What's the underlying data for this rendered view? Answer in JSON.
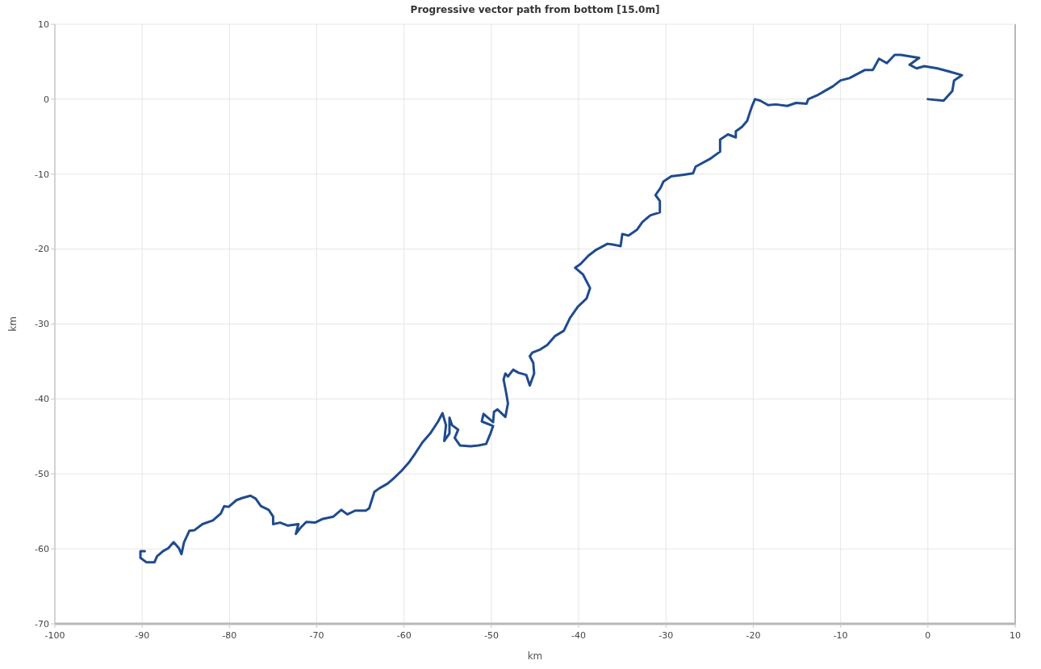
{
  "chart_data": {
    "type": "line",
    "title": "Progressive vector path from bottom [15.0m]",
    "xlabel": "km",
    "ylabel": "km",
    "xlim": [
      -100,
      10
    ],
    "ylim": [
      -70,
      10
    ],
    "xticks": [
      -100,
      -90,
      -80,
      -70,
      -60,
      -50,
      -40,
      -30,
      -20,
      -10,
      0,
      10
    ],
    "yticks": [
      -70,
      -60,
      -50,
      -40,
      -30,
      -20,
      -10,
      0,
      10
    ],
    "grid": true,
    "series": [
      {
        "color": "#1f4b8e",
        "x": [
          0,
          1.8,
          2.8,
          3.0,
          3.9,
          2.4,
          1.1,
          -0.4,
          -1.3,
          -2.1,
          -1.0,
          -3.1,
          -3.8,
          -4.7,
          -5.6,
          -6.3,
          -7.2,
          -9.0,
          -10.0,
          -10.9,
          -11.8,
          -12.7,
          -13.7,
          -13.9,
          -15.1,
          -16.1,
          -17.4,
          -18.3,
          -19.2,
          -19.8,
          -20.1,
          -20.4,
          -20.7,
          -21.3,
          -22.0,
          -22.0,
          -22.9,
          -23.8,
          -23.8,
          -25.0,
          -26.6,
          -26.9,
          -28.1,
          -29.4,
          -30.3,
          -30.6,
          -31.2,
          -30.7,
          -30.7,
          -31.8,
          -32.7,
          -33.3,
          -34.3,
          -35.0,
          -35.2,
          -36.1,
          -36.7,
          -38.0,
          -38.9,
          -39.8,
          -40.4,
          -39.5,
          -38.7,
          -39.1,
          -40.1,
          -41.0,
          -41.7,
          -42.7,
          -43.6,
          -44.4,
          -45.3,
          -45.6,
          -45.2,
          -45.1,
          -45.6,
          -46.0,
          -46.9,
          -47.5,
          -48.1,
          -48.4,
          -48.6,
          -48.3,
          -48.1,
          -48.4,
          -49.3,
          -49.7,
          -49.8,
          -50.9,
          -51.1,
          -49.8,
          -50.1,
          -50.6,
          -51.5,
          -52.4,
          -53.6,
          -54.2,
          -53.8,
          -54.5,
          -54.8,
          -54.8,
          -55.4,
          -55.2,
          -55.6,
          -56.1,
          -57.0,
          -57.9,
          -58.8,
          -59.4,
          -60.3,
          -61.2,
          -61.9,
          -62.8,
          -63.4,
          -63.7,
          -64.0,
          -64.4,
          -65.6,
          -66.5,
          -67.2,
          -68.1,
          -69.3,
          -70.2,
          -71.2,
          -71.8,
          -72.4,
          -72.1,
          -73.3,
          -74.2,
          -75.0,
          -75.0,
          -75.5,
          -76.4,
          -77.0,
          -77.6,
          -78.5,
          -79.2,
          -80.1,
          -80.6,
          -81.0,
          -81.9,
          -83.1,
          -84.0,
          -84.6,
          -85.2,
          -85.5,
          -85.8,
          -86.4,
          -87.0,
          -87.6,
          -88.3,
          -88.6,
          -89.5,
          -90.2,
          -90.2,
          -89.7
        ],
        "values": [
          0,
          -0.2,
          1.1,
          2.5,
          3.2,
          3.7,
          4.1,
          4.4,
          4.1,
          4.6,
          5.5,
          5.9,
          5.9,
          4.8,
          5.4,
          3.9,
          3.9,
          2.8,
          2.5,
          1.7,
          1.1,
          0.5,
          0,
          -0.6,
          -0.5,
          -0.9,
          -0.7,
          -0.8,
          -0.2,
          0.0,
          -0.8,
          -1.8,
          -2.9,
          -3.7,
          -4.3,
          -5.1,
          -4.7,
          -5.4,
          -7.0,
          -8.0,
          -9.0,
          -9.9,
          -10.1,
          -10.3,
          -11.0,
          -11.8,
          -12.8,
          -13.6,
          -15.1,
          -15.5,
          -16.4,
          -17.4,
          -18.2,
          -18.0,
          -19.6,
          -19.4,
          -19.3,
          -20.1,
          -20.9,
          -22.0,
          -22.5,
          -23.4,
          -25.2,
          -26.6,
          -27.7,
          -29.2,
          -30.9,
          -31.6,
          -32.8,
          -33.4,
          -33.8,
          -34.3,
          -35.2,
          -36.6,
          -38.2,
          -36.8,
          -36.5,
          -36.1,
          -37.0,
          -36.6,
          -37.4,
          -39.2,
          -40.6,
          -42.4,
          -41.4,
          -41.7,
          -43.1,
          -42.0,
          -43.0,
          -43.6,
          -44.6,
          -46.0,
          -46.2,
          -46.3,
          -46.2,
          -45.2,
          -44.1,
          -43.5,
          -42.5,
          -44.6,
          -45.6,
          -43.5,
          -41.9,
          -43.0,
          -44.6,
          -45.8,
          -47.4,
          -48.4,
          -49.6,
          -50.6,
          -51.3,
          -51.9,
          -52.4,
          -53.5,
          -54.6,
          -54.9,
          -54.9,
          -55.4,
          -54.8,
          -55.7,
          -56.0,
          -56.5,
          -56.4,
          -57.1,
          -58.0,
          -56.7,
          -56.9,
          -56.5,
          -56.7,
          -55.7,
          -54.8,
          -54.3,
          -53.3,
          -52.9,
          -53.2,
          -53.5,
          -54.4,
          -54.3,
          -55.3,
          -56.2,
          -56.7,
          -57.5,
          -57.6,
          -59.1,
          -60.7,
          -59.9,
          -59.1,
          -59.9,
          -60.3,
          -61.0,
          -61.8,
          -61.8,
          -61.2,
          -60.3,
          -60.3
        ]
      }
    ]
  }
}
